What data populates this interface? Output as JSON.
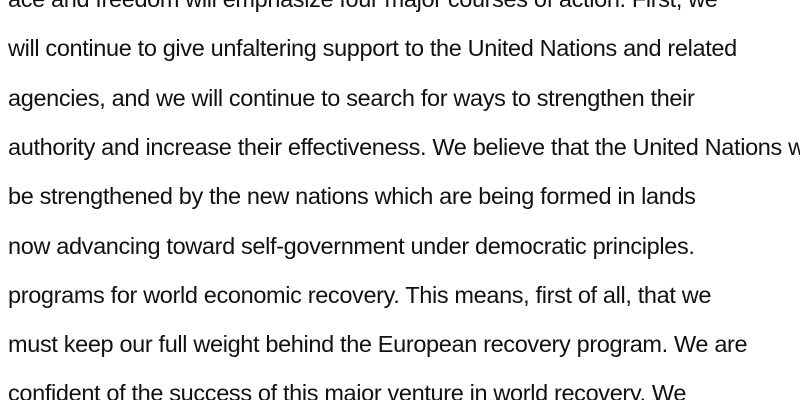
{
  "document": {
    "lines": [
      "ace and freedom will emphasize four major courses of action. First, we",
      "will continue to give unfaltering support to the United Nations and related",
      "agencies, and we will continue to search for ways to strengthen their",
      "authority and increase their effectiveness. We believe that the United Nations will",
      "be strengthened by the new nations which are being formed in lands",
      "now advancing toward self-government under democratic principles.",
      "programs for world economic recovery. This means, first of all, that we",
      "must keep our full weight behind the European recovery program. We are",
      "confident of the success of this major venture in world recovery. We"
    ]
  }
}
